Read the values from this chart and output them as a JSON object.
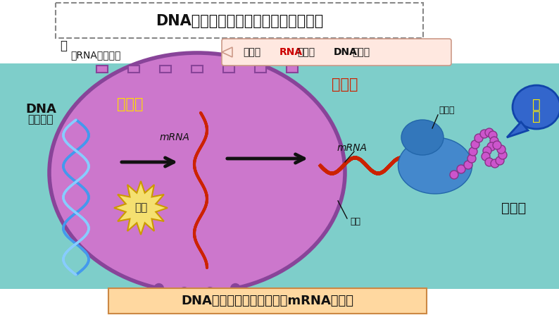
{
  "bg_top": "#ffffff",
  "bg_cell": "#7ececa",
  "nucleus_fill": "#cc77cc",
  "nucleus_edge": "#884499",
  "top_box_text": "DNA主要存在哪里？蛋白质在哪里合成",
  "bottom_box_text": "DNA的遗传信息是怎样传给mRNA的呢？",
  "label_question": "？",
  "label_rna_messenger": "请RNA充当信使",
  "label_why_rna_pre": "为什么",
  "label_why_rna_rna": "RNA",
  "label_why_rna_mid": "适于作",
  "label_why_rna_dna": "DNA",
  "label_why_rna_post": "的信使",
  "label_dna_bold": "DNA",
  "label_dna_gene": "（基因）",
  "label_nucleus": "细胞核",
  "label_cytoplasm": "细胞质",
  "label_mrna1": "mRNA",
  "label_mrna2": "mRNA",
  "label_transcription": "转录",
  "label_ribosome": "核糖体",
  "label_protein": "蛋白质",
  "label_pore": "核孔",
  "label_translation": "翻译",
  "color_top_box_edge": "#888888",
  "color_bottom_box_fill": "#ffd8a0",
  "color_bottom_box_edge": "#cc8844",
  "color_q2_box_fill": "#ffe8e0",
  "color_q2_box_edge": "#cc9988",
  "color_cytoplasm_label": "#cc2200",
  "color_nucleus_label": "#ffdd00",
  "color_dna_label": "#111111",
  "color_arrow": "#111111",
  "color_starburst_fill": "#f5e070",
  "color_starburst_edge": "#cc9900",
  "color_rna_red": "#cc2200",
  "color_dna_blue1": "#4499ee",
  "color_dna_blue2": "#88ccff",
  "color_ribosome": "#4488cc",
  "color_protein_bead": "#cc55cc",
  "color_protein_bead_edge": "#883388",
  "color_translation_fill": "#3366cc",
  "color_translation_text": "#ffee00",
  "color_protein_label": "#111111"
}
